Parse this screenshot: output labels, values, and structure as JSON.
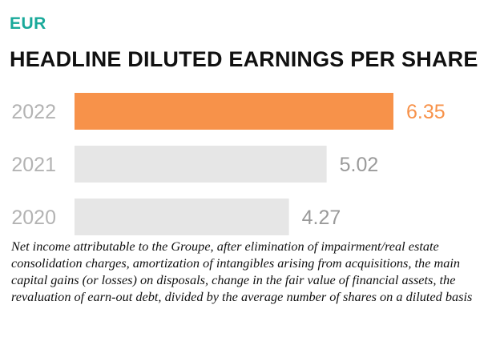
{
  "header": {
    "currency": "EUR",
    "title": "HEADLINE DILUTED EARNINGS PER SHARE"
  },
  "chart_data": {
    "type": "bar",
    "orientation": "horizontal",
    "title": "HEADLINE DILUTED EARNINGS PER SHARE",
    "categories": [
      "2022",
      "2021",
      "2020"
    ],
    "values": [
      6.35,
      5.02,
      4.27
    ],
    "value_labels": [
      "6.35",
      "5.02",
      "4.27"
    ],
    "colors": [
      "#f7924a",
      "#e6e6e6",
      "#e6e6e6"
    ],
    "label_colors": [
      "#f7924a",
      "#9a9a9a",
      "#9a9a9a"
    ],
    "category_label_color": "#b3b3b3",
    "xlim": [
      0,
      6.35
    ],
    "grid": false,
    "legend": "none"
  },
  "footnote": "Net income attributable to the Groupe, after elimination of impairment/real estate consolidation charges, amortization of intangibles arising from acquisitions, the main capital gains (or losses) on disposals, change in the fair value of financial assets, the revaluation of earn-out debt, divided by the average number of shares on a diluted basis"
}
